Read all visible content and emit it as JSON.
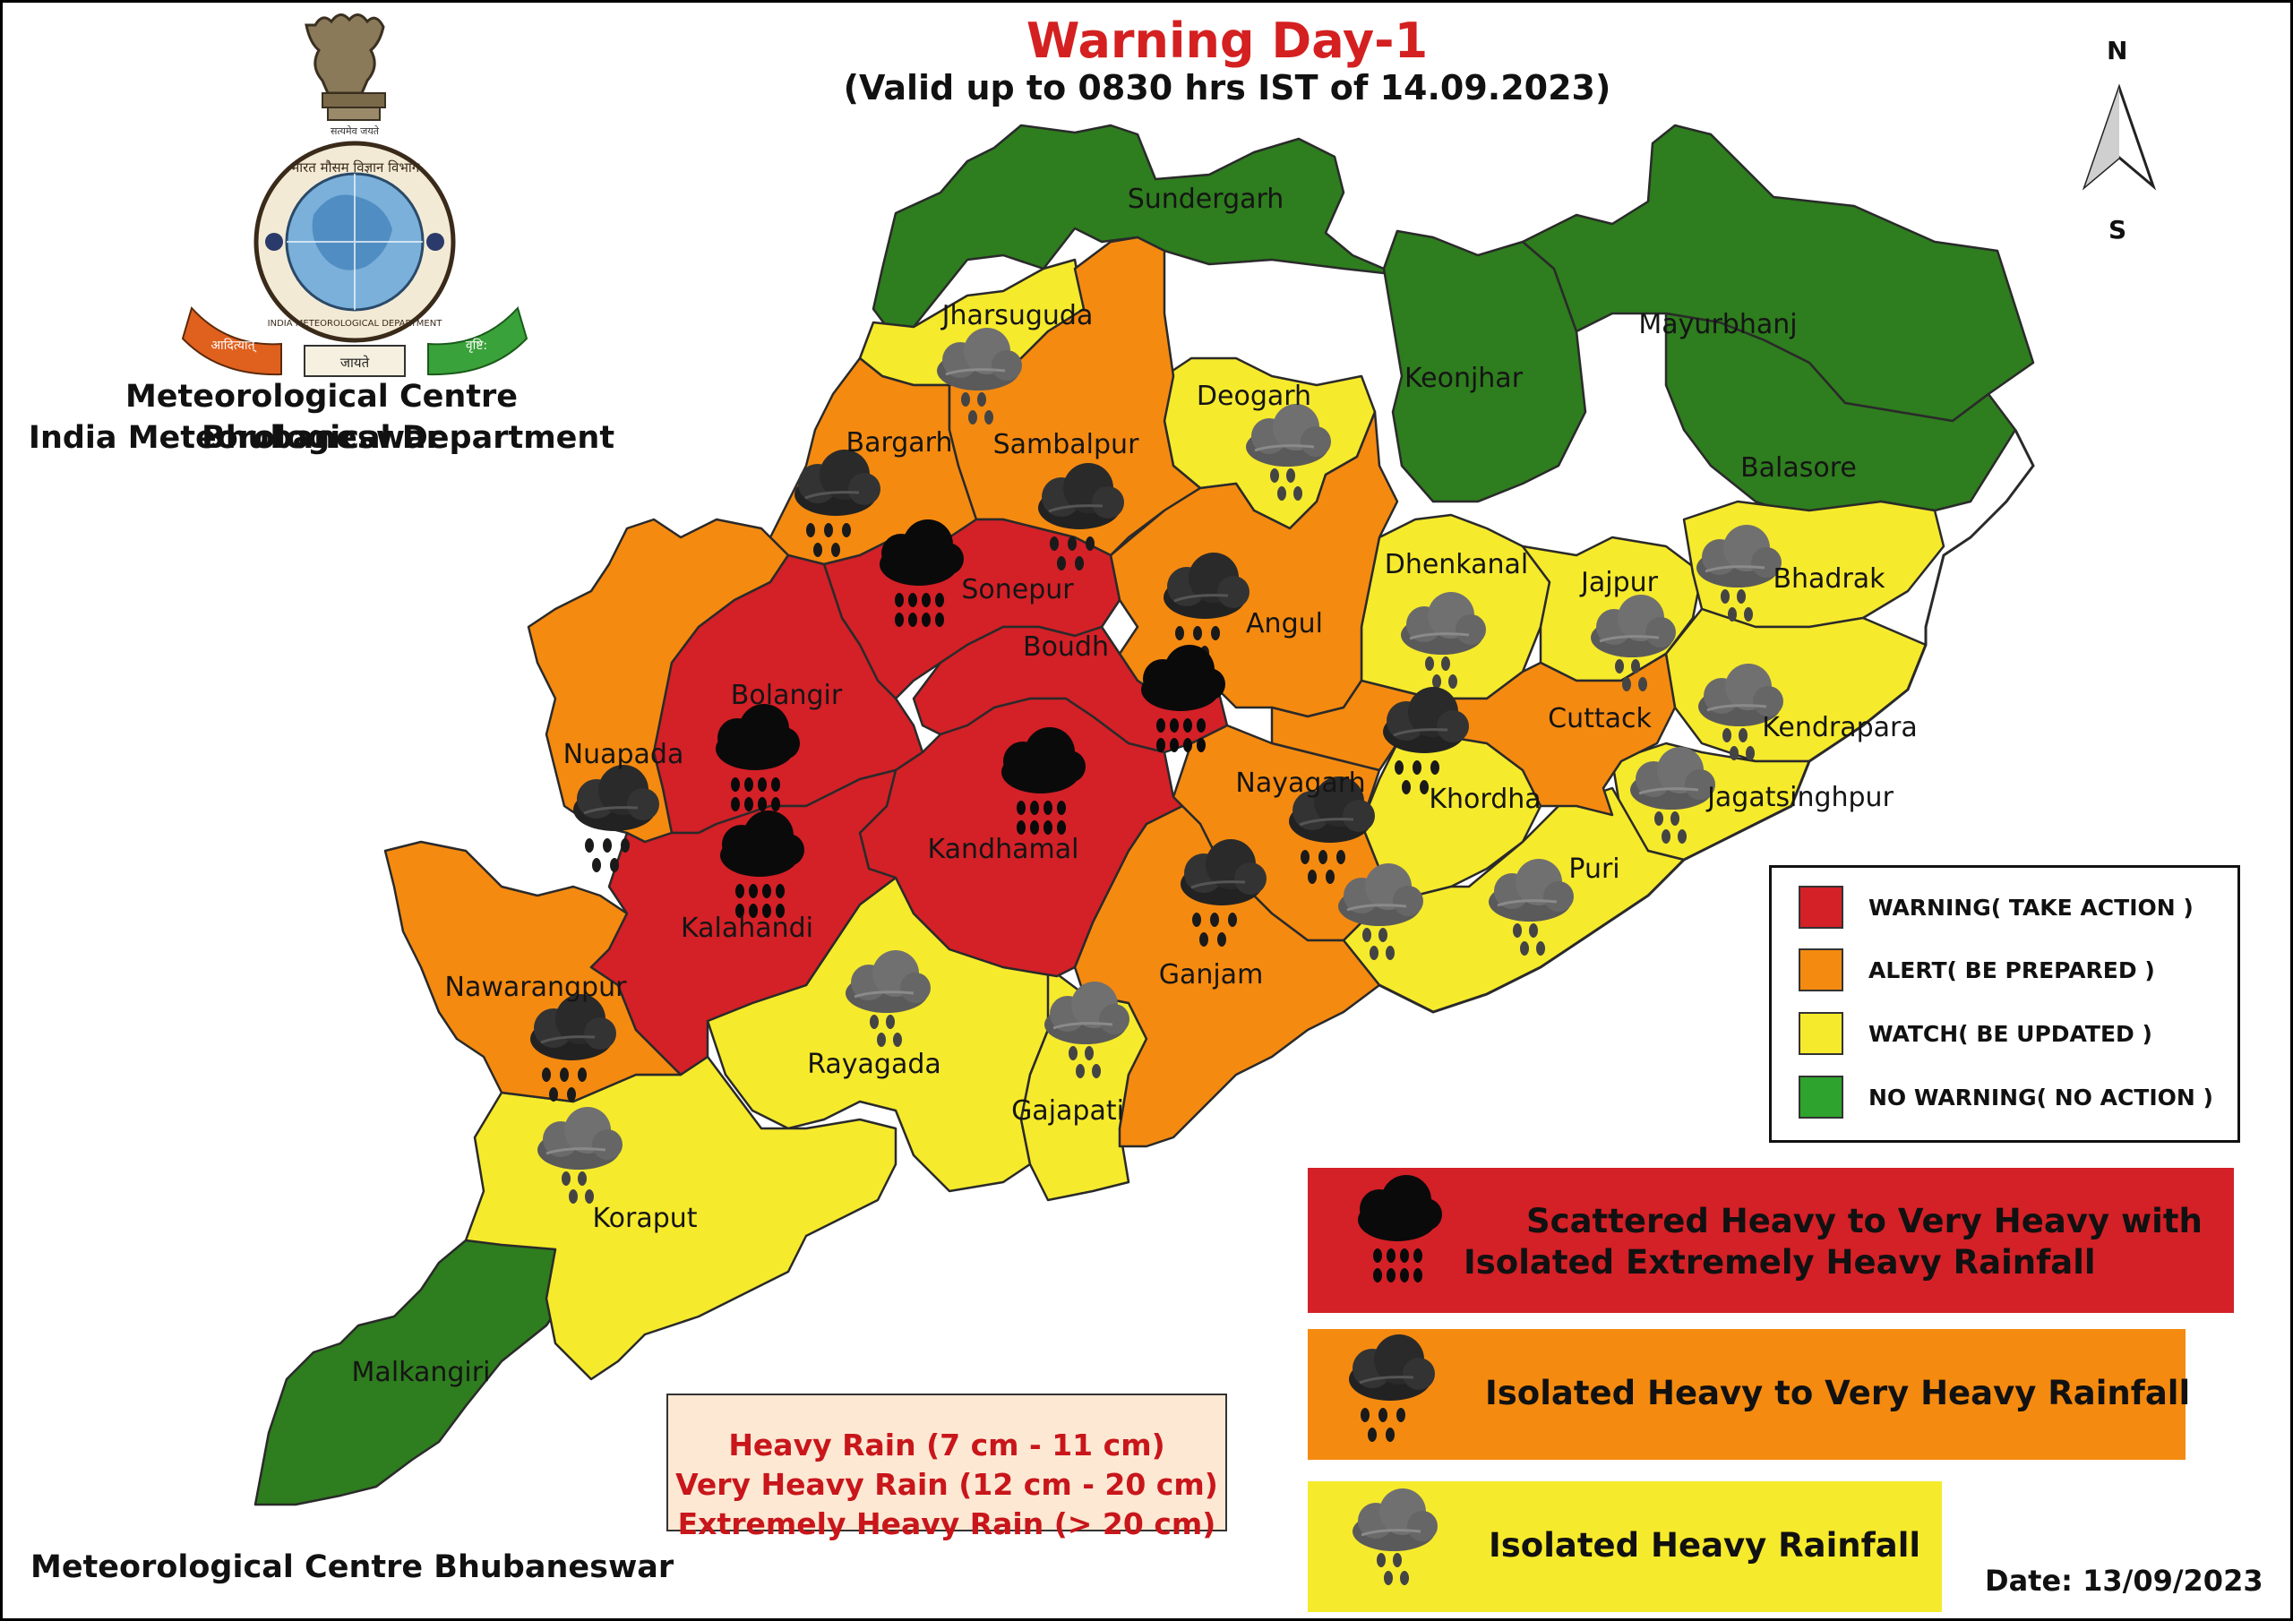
{
  "header": {
    "title": "Warning Day-1",
    "subtitle": "(Valid up to 0830 hrs IST of 14.09.2023)"
  },
  "organization": {
    "line1": "Meteorological Centre Bhubaneswar",
    "line2": "India Meteorological Department",
    "footer": "Meteorological Centre Bhubaneswar",
    "emblem_caption": "सत्यमेव जयते",
    "logo_text": [
      "भारत मौसम विज्ञान विभाग",
      "INDIA METEOROLOGICAL DEPARTMENT",
      "आदित्यात्",
      "जायते",
      "वृष्टि:"
    ]
  },
  "date": "Date: 13/09/2023",
  "compass": {
    "north": "N",
    "south": "S"
  },
  "colors": {
    "warning": "#d42027",
    "alert": "#f58a10",
    "watch": "#f6ea2c",
    "no_warning": "#2e7d1e",
    "no_warning_legend": "#2ea32e"
  },
  "legend": [
    {
      "label": "WARNING( TAKE ACTION )",
      "color": "#d42027"
    },
    {
      "label": "ALERT( BE PREPARED )",
      "color": "#f58a10"
    },
    {
      "label": "WATCH( BE UPDATED )",
      "color": "#f6ea2c"
    },
    {
      "label": "NO WARNING( NO ACTION )",
      "color": "#2ea32e"
    }
  ],
  "impact_legend": [
    {
      "icon": "extremely-heavy-rain-cloud-icon",
      "line1": "Scattered Heavy to Very Heavy with",
      "line2": "Isolated Extremely Heavy Rainfall",
      "color": "#d42027"
    },
    {
      "icon": "very-heavy-rain-cloud-icon",
      "line1": "Isolated Heavy to Very Heavy Rainfall",
      "line2": "",
      "color": "#f58a10"
    },
    {
      "icon": "heavy-rain-cloud-icon",
      "line1": "Isolated Heavy Rainfall",
      "line2": "",
      "color": "#f6ea2c"
    }
  ],
  "rain_scale": [
    "Heavy Rain (7 cm - 11 cm)",
    "Very Heavy Rain (12 cm - 20 cm)",
    "Extremely Heavy Rain (> 20 cm)"
  ],
  "districts": [
    {
      "name": "Sundergarh",
      "level": "no_warning",
      "rain": null
    },
    {
      "name": "Keonjhar",
      "level": "no_warning",
      "rain": null
    },
    {
      "name": "Mayurbhanj",
      "level": "no_warning",
      "rain": null
    },
    {
      "name": "Balasore",
      "level": "no_warning",
      "rain": null
    },
    {
      "name": "Malkangiri",
      "level": "no_warning",
      "rain": null
    },
    {
      "name": "Jharsuguda",
      "level": "watch",
      "rain": "heavy"
    },
    {
      "name": "Deogarh",
      "level": "watch",
      "rain": "heavy"
    },
    {
      "name": "Dhenkanal",
      "level": "watch",
      "rain": "heavy"
    },
    {
      "name": "Jajpur",
      "level": "watch",
      "rain": "heavy"
    },
    {
      "name": "Bhadrak",
      "level": "watch",
      "rain": "heavy"
    },
    {
      "name": "Kendrapara",
      "level": "watch",
      "rain": "heavy"
    },
    {
      "name": "Jagatsinghpur",
      "level": "watch",
      "rain": "heavy"
    },
    {
      "name": "Khordha",
      "level": "watch",
      "rain": "heavy"
    },
    {
      "name": "Puri",
      "level": "watch",
      "rain": "heavy"
    },
    {
      "name": "Rayagada",
      "level": "watch",
      "rain": "heavy"
    },
    {
      "name": "Gajapati",
      "level": "watch",
      "rain": "heavy"
    },
    {
      "name": "Koraput",
      "level": "watch",
      "rain": "heavy"
    },
    {
      "name": "Bargarh",
      "level": "alert",
      "rain": "very_heavy"
    },
    {
      "name": "Sambalpur",
      "level": "alert",
      "rain": "very_heavy"
    },
    {
      "name": "Angul",
      "level": "alert",
      "rain": "very_heavy"
    },
    {
      "name": "Cuttack",
      "level": "alert",
      "rain": "very_heavy"
    },
    {
      "name": "Nayagarh",
      "level": "alert",
      "rain": "very_heavy"
    },
    {
      "name": "Ganjam",
      "level": "alert",
      "rain": "very_heavy"
    },
    {
      "name": "Nuapada",
      "level": "alert",
      "rain": "very_heavy"
    },
    {
      "name": "Nawarangpur",
      "level": "alert",
      "rain": "very_heavy"
    },
    {
      "name": "Sonepur",
      "level": "warning",
      "rain": "extremely_heavy"
    },
    {
      "name": "Boudh",
      "level": "warning",
      "rain": "extremely_heavy"
    },
    {
      "name": "Bolangir",
      "level": "warning",
      "rain": "extremely_heavy"
    },
    {
      "name": "Kandhamal",
      "level": "warning",
      "rain": "extremely_heavy"
    },
    {
      "name": "Kalahandi",
      "level": "warning",
      "rain": "extremely_heavy"
    }
  ]
}
